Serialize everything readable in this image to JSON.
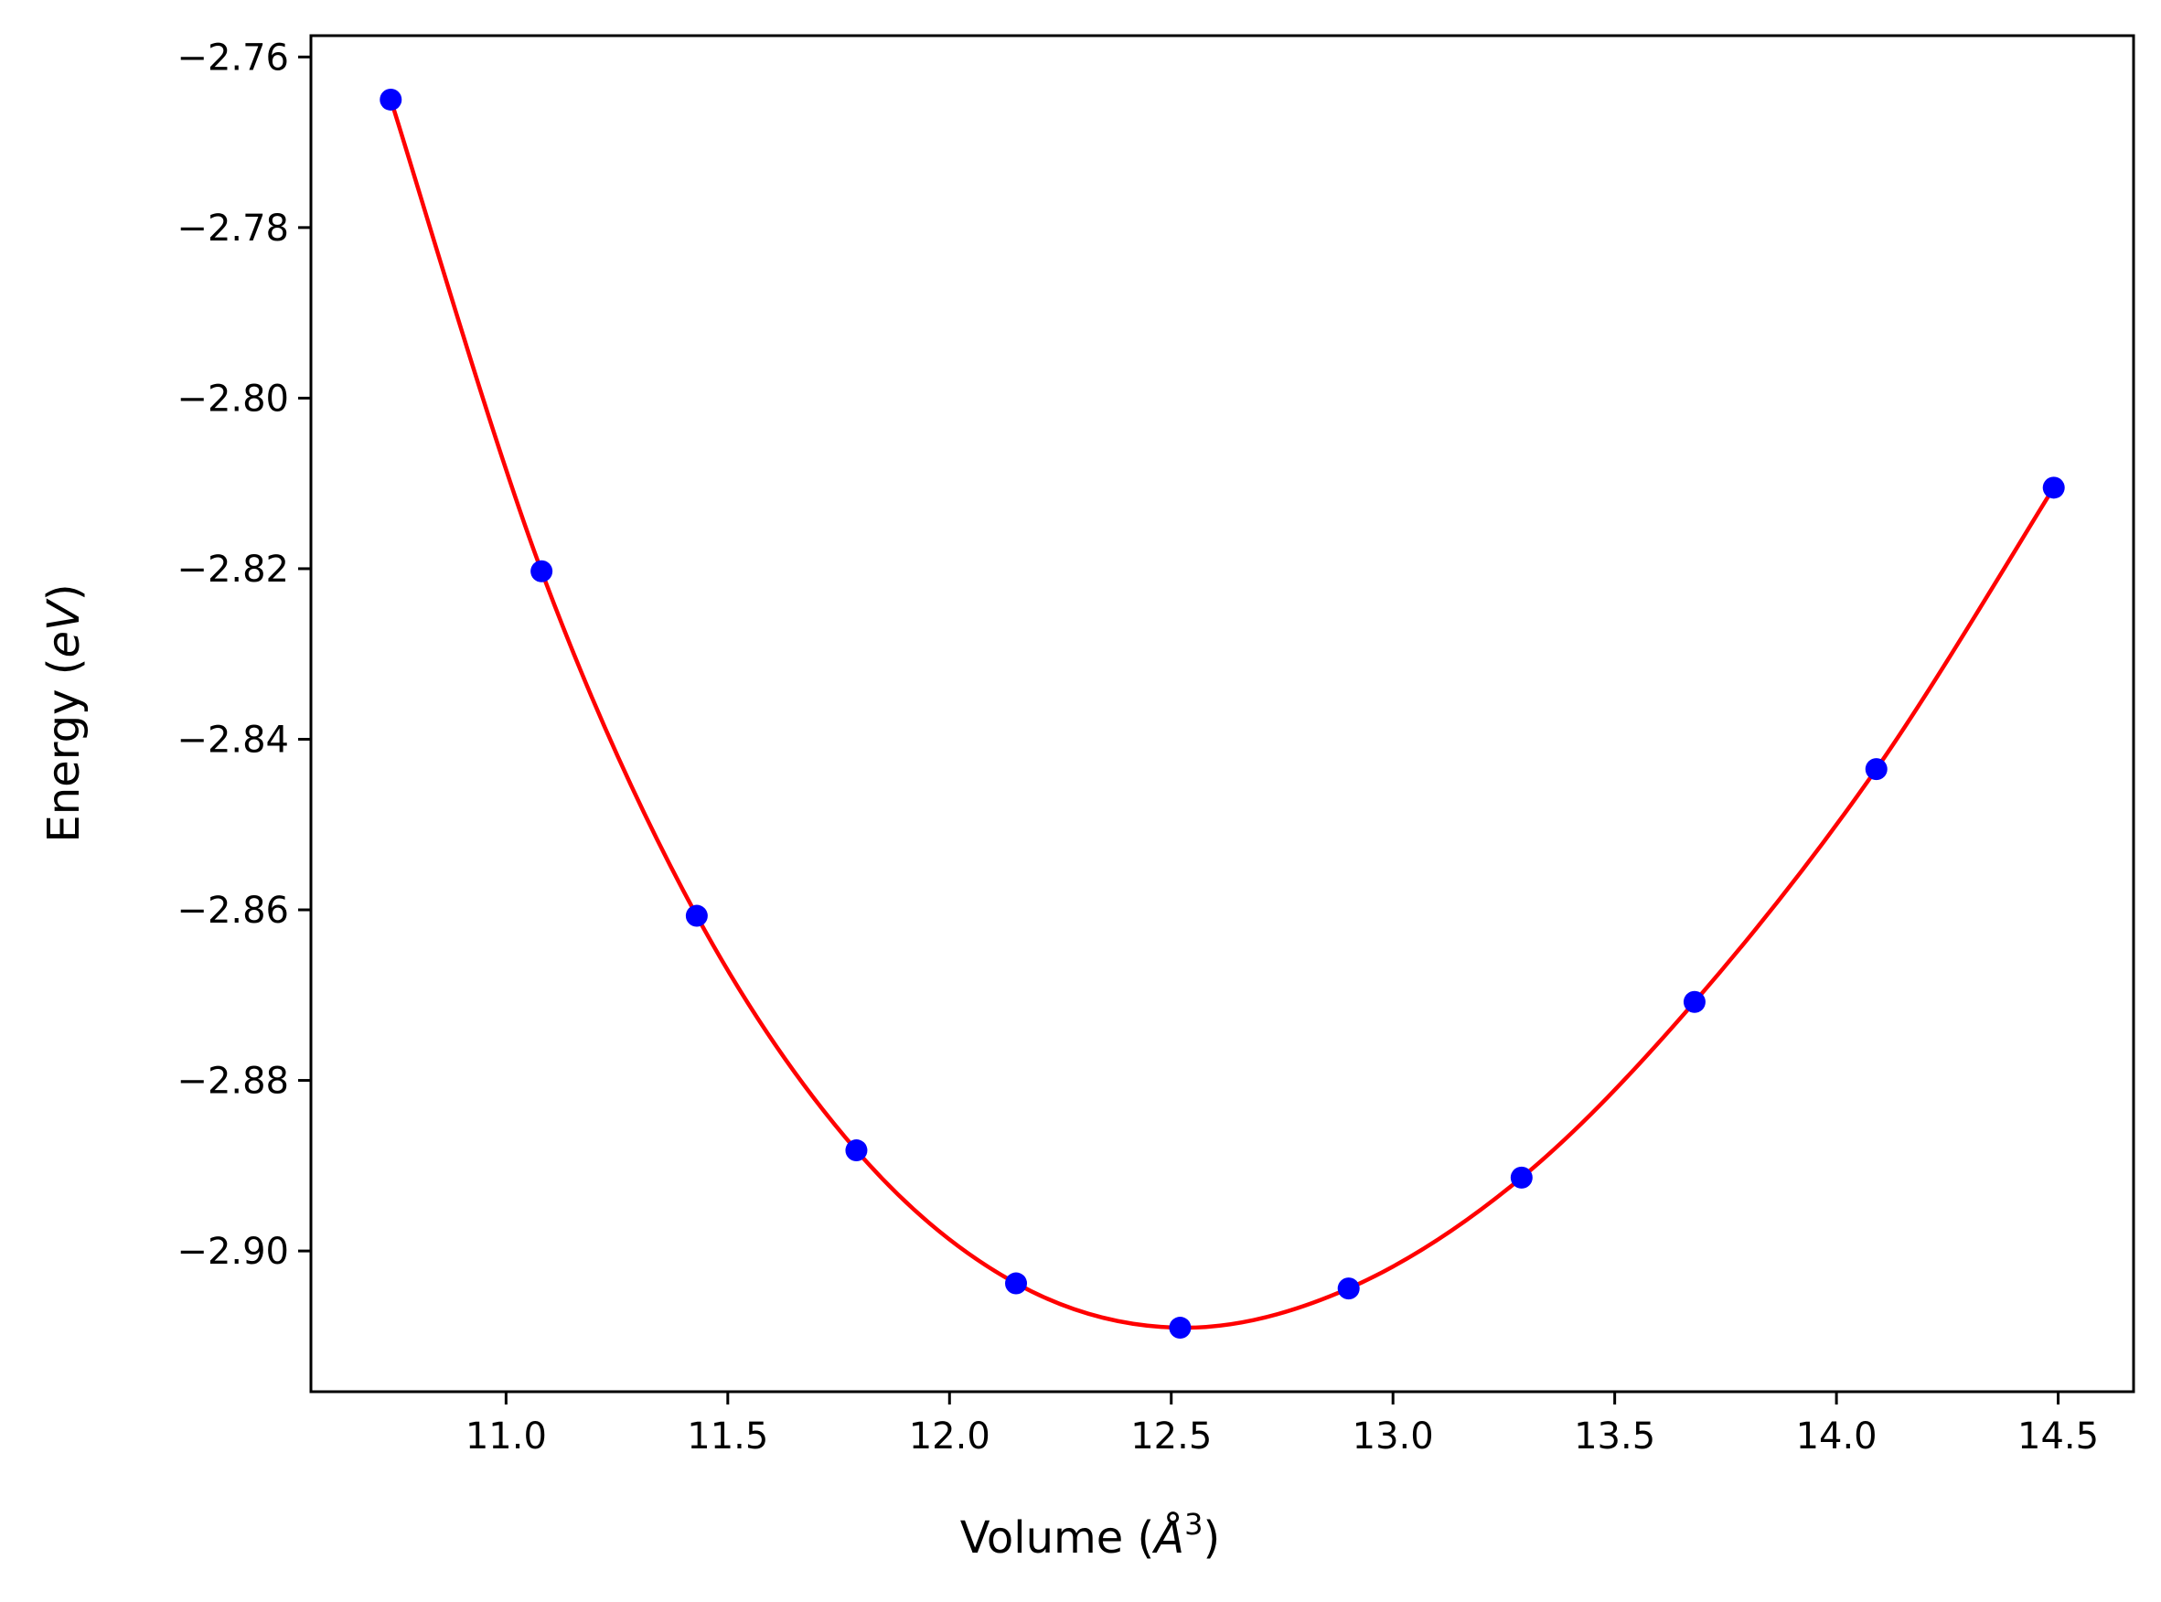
{
  "chart_data": {
    "type": "scatter",
    "xlabel_main": "Volume (",
    "xlabel_italic": "Å",
    "xlabel_sup": "3",
    "xlabel_end": ")",
    "ylabel_main": "Energy (",
    "ylabel_italic": "eV",
    "ylabel_end": ")",
    "xlim": [
      10.56,
      14.67
    ],
    "ylim": [
      -2.9165,
      -2.7575
    ],
    "x_ticks": [
      11.0,
      11.5,
      12.0,
      12.5,
      13.0,
      13.5,
      14.0,
      14.5
    ],
    "x_tick_labels": [
      "11.0",
      "11.5",
      "12.0",
      "12.5",
      "13.0",
      "13.5",
      "14.0",
      "14.5"
    ],
    "y_ticks": [
      -2.76,
      -2.78,
      -2.8,
      -2.82,
      -2.84,
      -2.86,
      -2.88,
      -2.9
    ],
    "y_tick_labels": [
      "−2.76",
      "−2.78",
      "−2.80",
      "−2.82",
      "−2.84",
      "−2.86",
      "−2.88",
      "−2.90"
    ],
    "grid": false,
    "series": [
      {
        "kind": "points",
        "color": "#0000ff",
        "x": [
          10.74,
          11.08,
          11.43,
          11.79,
          12.15,
          12.52,
          12.9,
          13.29,
          13.68,
          14.09,
          14.49
        ],
        "y": [
          -2.765,
          -2.8203,
          -2.8607,
          -2.8882,
          -2.9038,
          -2.909,
          -2.9044,
          -2.8914,
          -2.8708,
          -2.8435,
          -2.8105
        ]
      },
      {
        "kind": "fit-curve",
        "color": "#ff0000",
        "x": [
          10.74,
          11.08,
          11.43,
          11.79,
          12.15,
          12.52,
          12.9,
          13.29,
          13.68,
          14.09,
          14.49
        ],
        "y": [
          -2.765,
          -2.8203,
          -2.8607,
          -2.8882,
          -2.9038,
          -2.909,
          -2.9044,
          -2.8914,
          -2.8708,
          -2.8435,
          -2.8105
        ]
      }
    ]
  }
}
